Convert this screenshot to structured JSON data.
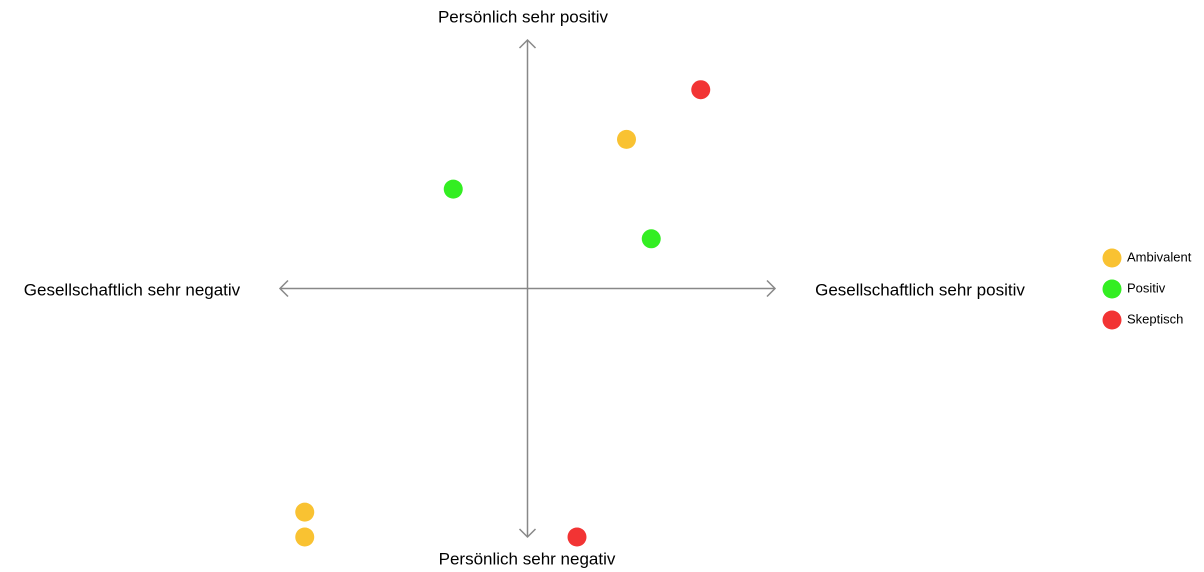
{
  "chart_data": {
    "type": "scatter",
    "axis_labels": {
      "top": "Persönlich sehr positiv",
      "bottom": "Persönlich sehr negativ",
      "left": "Gesellschaftlich sehr negativ",
      "right": "Gesellschaftlich sehr positiv"
    },
    "xlim": [
      -5,
      5
    ],
    "ylim": [
      -5,
      5
    ],
    "legend": "right",
    "series": [
      {
        "name": "Ambivalent",
        "color": "#f9c232",
        "x": [
          2,
          -4.5,
          -4.5
        ],
        "values": [
          3,
          -4.5,
          -5
        ]
      },
      {
        "name": "Positiv",
        "color": "#33ee22",
        "x": [
          -1.5,
          2.5
        ],
        "values": [
          2,
          1
        ]
      },
      {
        "name": "Skeptisch",
        "color": "#f23434",
        "x": [
          3.5,
          1
        ],
        "values": [
          4,
          -5
        ]
      }
    ]
  }
}
